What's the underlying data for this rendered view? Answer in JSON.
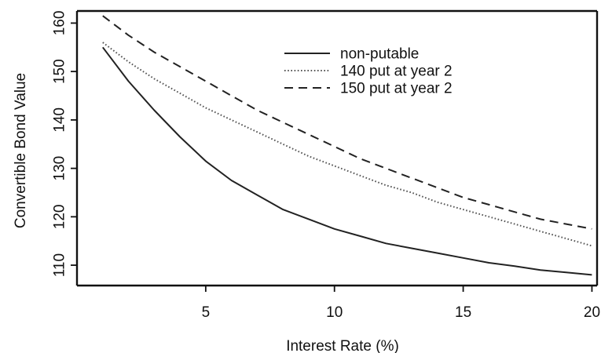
{
  "chart_data": {
    "type": "line",
    "title": "",
    "xlabel": "Interest Rate (%)",
    "ylabel": "Convertible Bond Value",
    "xlim": [
      0,
      20.2
    ],
    "ylim": [
      105.8,
      162.5
    ],
    "xticks": [
      5,
      10,
      15,
      20
    ],
    "yticks": [
      110,
      120,
      130,
      140,
      150,
      160
    ],
    "grid": false,
    "legend_position": "top-right",
    "series": [
      {
        "name": "non-putable",
        "line_style": "solid",
        "color": "#222222",
        "x": [
          1,
          2,
          3,
          4,
          5,
          6,
          7,
          8,
          9,
          10,
          11,
          12,
          13,
          14,
          15,
          16,
          17,
          18,
          19,
          20
        ],
        "y": [
          155,
          148,
          142,
          136.5,
          131.5,
          127.5,
          124.5,
          121.5,
          119.5,
          117.5,
          116,
          114.5,
          113.5,
          112.5,
          111.5,
          110.5,
          109.8,
          109,
          108.5,
          108
        ]
      },
      {
        "name": "140 put at year 2",
        "line_style": "dotted",
        "color": "#555555",
        "x": [
          1,
          2,
          3,
          4,
          5,
          6,
          7,
          8,
          9,
          10,
          11,
          12,
          13,
          14,
          15,
          16,
          17,
          18,
          19,
          20
        ],
        "y": [
          156,
          152,
          148.5,
          145.5,
          142.5,
          140,
          137.5,
          135,
          132.5,
          130.5,
          128.5,
          126.5,
          125,
          123,
          121.5,
          120,
          118.5,
          117,
          115.5,
          114
        ]
      },
      {
        "name": "150 put at year 2",
        "line_style": "dashed",
        "color": "#222222",
        "x": [
          1,
          2,
          3,
          4,
          5,
          6,
          7,
          8,
          9,
          10,
          11,
          12,
          13,
          14,
          15,
          16,
          17,
          18,
          19,
          20
        ],
        "y": [
          161.5,
          157.5,
          154,
          151,
          148,
          145,
          142,
          139.5,
          137,
          134.5,
          132,
          130,
          128,
          126,
          124,
          122.5,
          121,
          119.5,
          118.5,
          117.5
        ]
      }
    ]
  }
}
